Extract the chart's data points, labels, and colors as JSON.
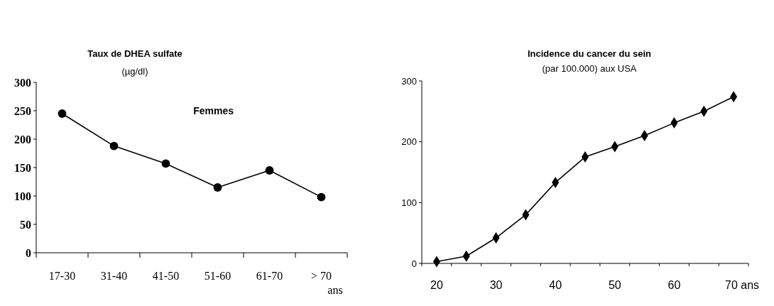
{
  "chart_data": [
    {
      "type": "line",
      "title": "Taux de DHEA sulfate",
      "subtitle": "(µg/dl)",
      "xlabel": "ans",
      "categories": [
        "17-30",
        "31-40",
        "41-50",
        "51-60",
        "61-70",
        "> 70"
      ],
      "series": [
        {
          "name": "Femmes",
          "color": "#000000",
          "values": [
            245,
            188,
            157,
            115,
            145,
            98
          ]
        }
      ],
      "ylim": [
        0,
        300
      ],
      "yticks": [
        0,
        50,
        100,
        150,
        200,
        250,
        300
      ],
      "grid": false,
      "marker": "circle",
      "line_style": "solid"
    },
    {
      "type": "line",
      "title": "Incidence du cancer du sein",
      "subtitle": "(par 100.000) aux USA",
      "categories": [
        "20",
        null,
        "30",
        null,
        "40",
        null,
        "50",
        null,
        "60",
        null,
        "70 ans"
      ],
      "series": [
        {
          "color": "#000000",
          "values": [
            3,
            12,
            42,
            80,
            133,
            175,
            192,
            210,
            231,
            250,
            274
          ]
        }
      ],
      "ylim": [
        0,
        300
      ],
      "yticks": [
        0,
        100,
        200,
        300
      ],
      "grid": false,
      "marker": "diamond",
      "line_style": "solid"
    }
  ]
}
